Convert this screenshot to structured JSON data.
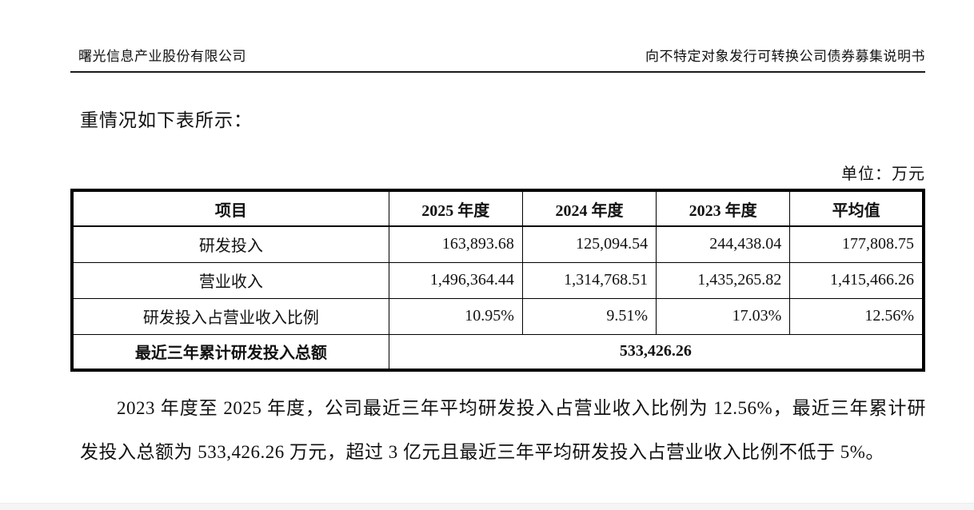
{
  "page": {
    "header": {
      "left": "曙光信息产业股份有限公司",
      "right": "向不特定对象发行可转换公司债券募集说明书"
    },
    "intro_text": "重情况如下表所示：",
    "unit_label": "单位：万元",
    "table": {
      "headers": [
        "项目",
        "2025 年度",
        "2024 年度",
        "2023 年度",
        "平均值"
      ],
      "rows": [
        {
          "label": "研发投入",
          "values": [
            "163,893.68",
            "125,094.54",
            "244,438.04",
            "177,808.75"
          ]
        },
        {
          "label": "营业收入",
          "values": [
            "1,496,364.44",
            "1,314,768.51",
            "1,435,265.82",
            "1,415,466.26"
          ]
        },
        {
          "label": "研发投入占营业收入比例",
          "values": [
            "10.95%",
            "9.51%",
            "17.03%",
            "12.56%"
          ]
        }
      ],
      "summary_row": {
        "label": "最近三年累计研发投入总额",
        "value": "533,426.26"
      }
    },
    "paragraph": "2023 年度至 2025 年度，公司最近三年平均研发投入占营业收入比例为 12.56%，最近三年累计研发投入总额为 533,426.26 万元，超过 3 亿元且最近三年平均研发投入占营业收入比例不低于 5%。"
  }
}
